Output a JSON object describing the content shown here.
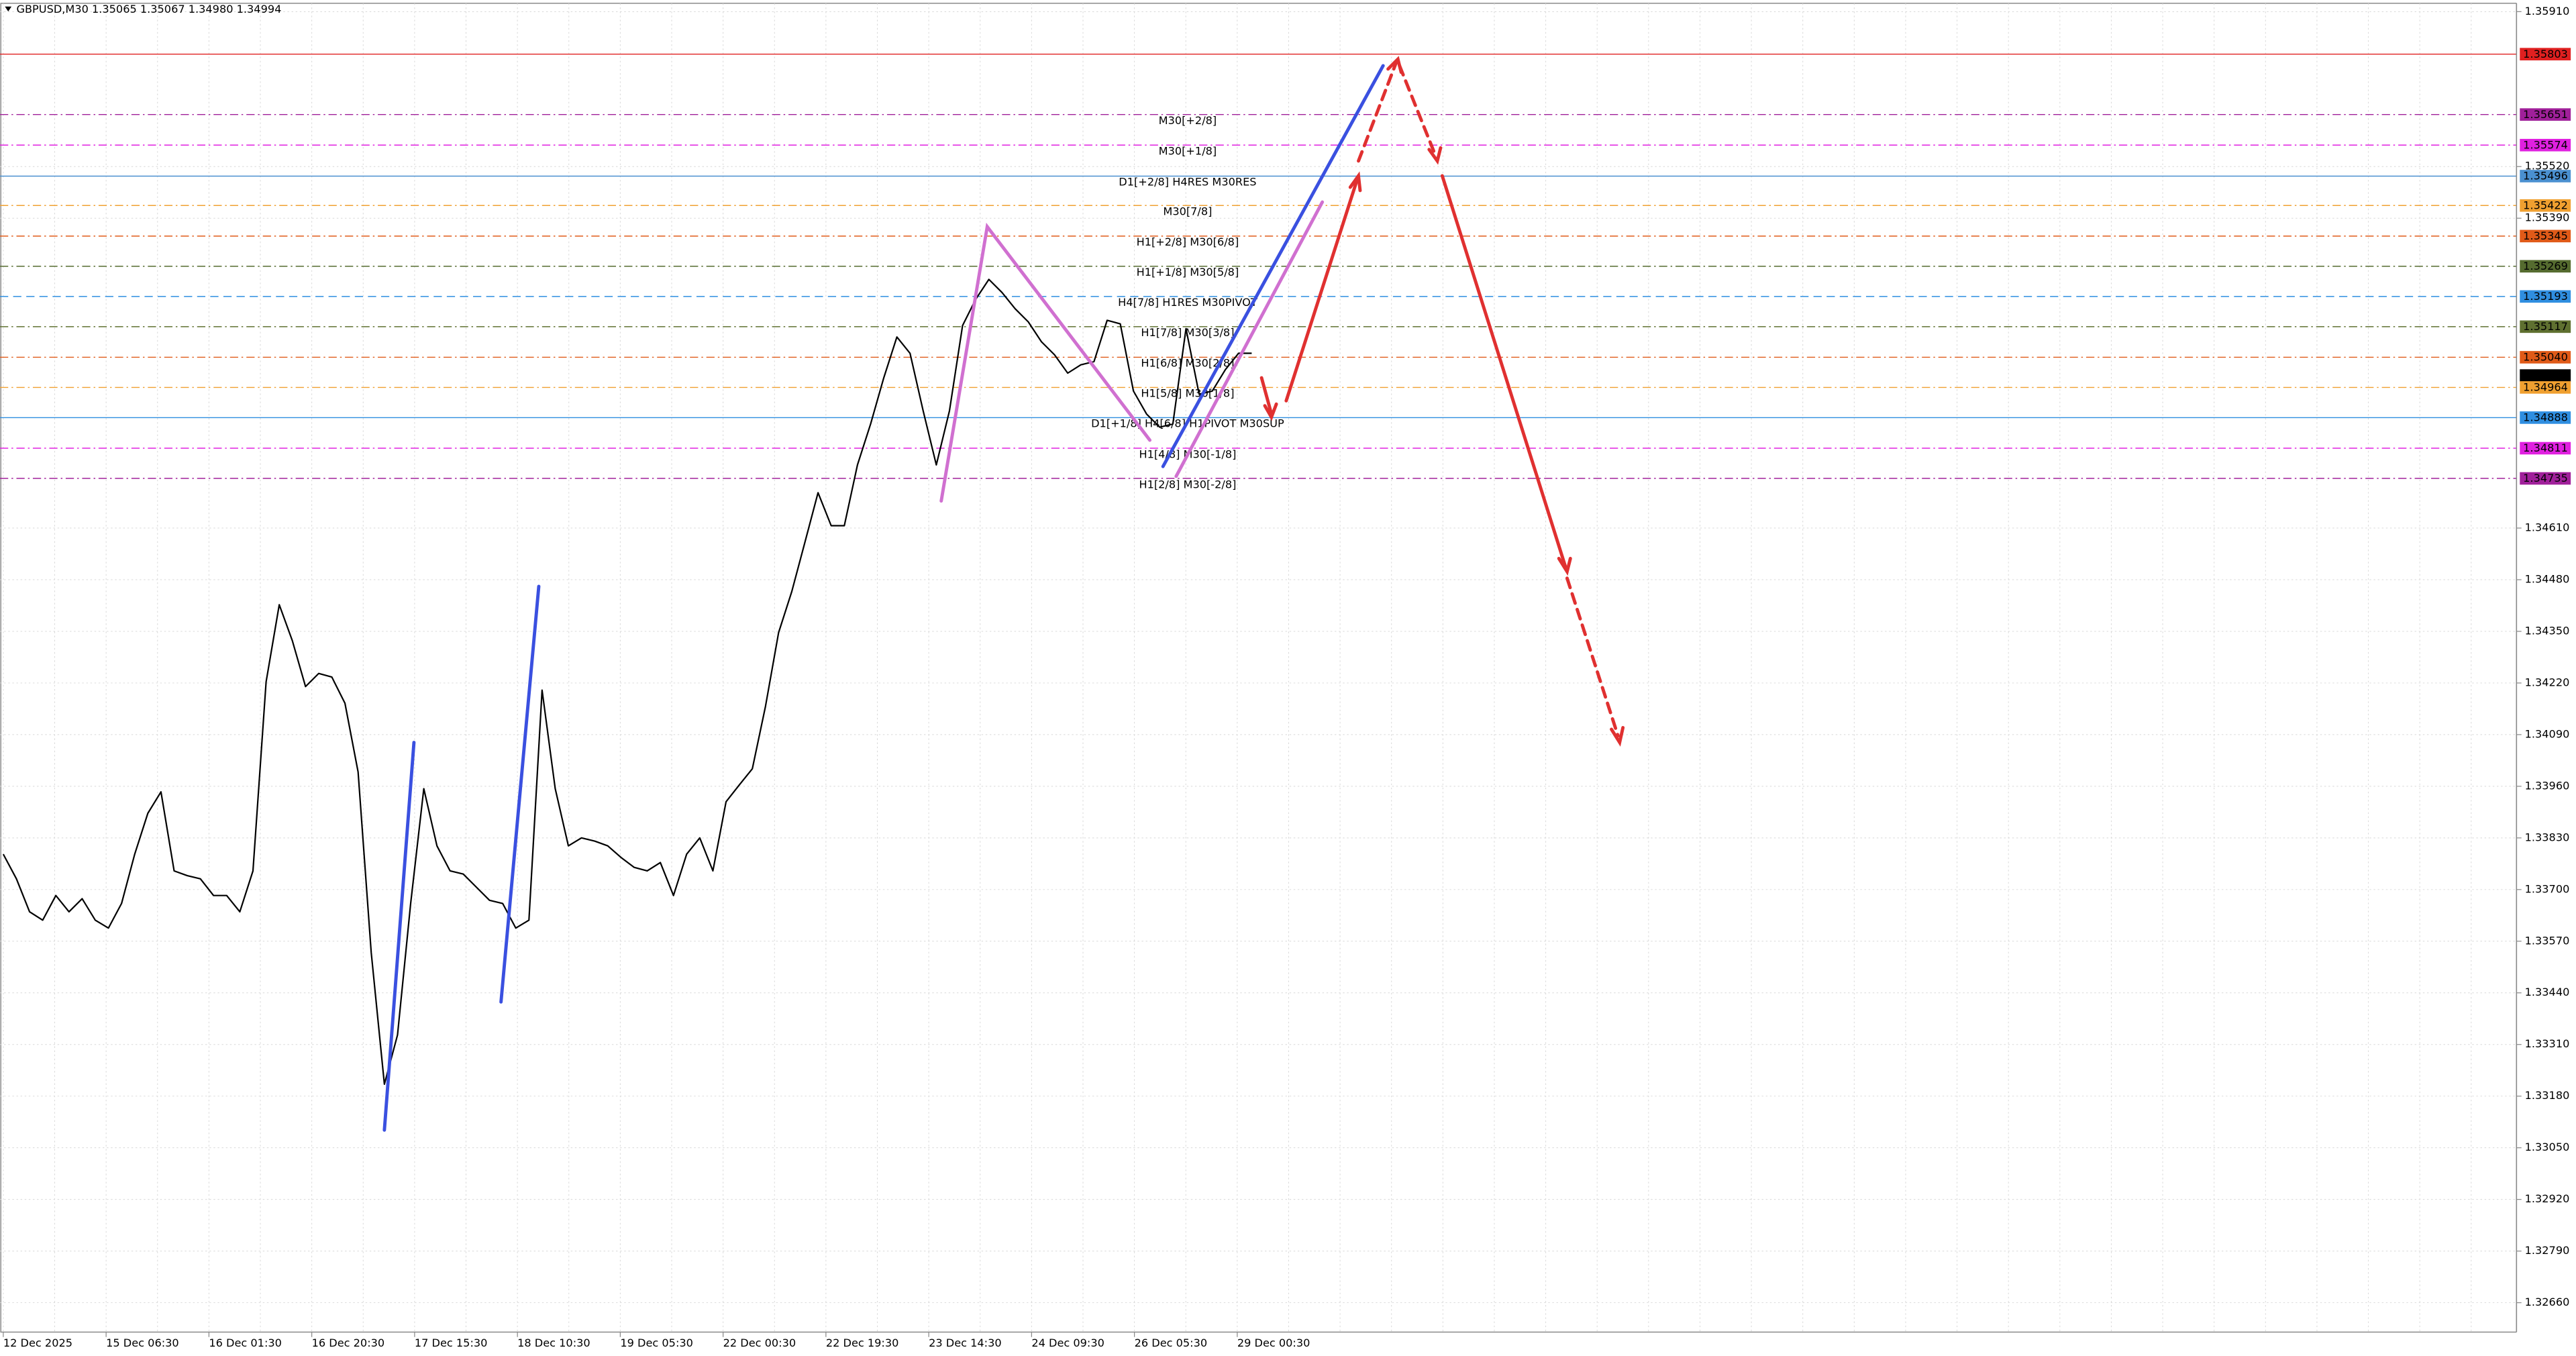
{
  "chart_data": {
    "type": "line",
    "title": "GBPUSD,M30  1.35065 1.35067 1.34980 1.34994",
    "x_tick_labels": [
      "12 Dec 2025",
      "15 Dec 06:30",
      "16 Dec 01:30",
      "16 Dec 20:30",
      "17 Dec 15:30",
      "18 Dec 10:30",
      "19 Dec 05:30",
      "22 Dec 00:30",
      "22 Dec 19:30",
      "23 Dec 14:30",
      "24 Dec 09:30",
      "26 Dec 05:30",
      "29 Dec 00:30"
    ],
    "series": [
      {
        "name": "GBPUSD",
        "color": "#000000",
        "values": [
          1.33789,
          1.33727,
          1.33644,
          1.33623,
          1.33685,
          1.33644,
          1.33677,
          1.33623,
          1.33603,
          1.33665,
          1.33789,
          1.33892,
          1.33946,
          1.33747,
          1.33735,
          1.33727,
          1.33685,
          1.33685,
          1.33644,
          1.33747,
          1.34223,
          1.34417,
          1.34326,
          1.34211,
          1.34244,
          1.34235,
          1.34169,
          1.33996,
          1.33541,
          1.3321,
          1.33334,
          1.33665,
          1.33954,
          1.3381,
          1.33747,
          1.33739,
          1.33706,
          1.33673,
          1.33665,
          1.33603,
          1.33623,
          1.34202,
          1.33954,
          1.3381,
          1.3383,
          1.33822,
          1.3381,
          1.33781,
          1.33756,
          1.33747,
          1.33768,
          1.33685,
          1.33789,
          1.3383,
          1.33747,
          1.33921,
          1.33963,
          1.34004,
          1.34161,
          1.34347,
          1.3445,
          1.34574,
          1.34699,
          1.34616,
          1.34616,
          1.34769,
          1.34872,
          1.34988,
          1.35091,
          1.3505,
          1.34905,
          1.34769,
          1.34905,
          1.3512,
          1.35186,
          1.35236,
          1.35203,
          1.35162,
          1.35129,
          1.35079,
          1.35046,
          1.35,
          1.35021,
          1.35029,
          1.35133,
          1.35124,
          1.34955,
          1.34897,
          1.34864,
          1.34872,
          1.35112,
          1.34947,
          1.34955,
          1.35009,
          1.3505,
          1.3505
        ]
      }
    ],
    "ylim": [
      1.32586,
      1.35931
    ],
    "yticks": [
      {
        "value": 1.3591,
        "label": "1.35910"
      },
      {
        "value": 1.3552,
        "label": "1.35520"
      },
      {
        "value": 1.3539,
        "label": "1.35390"
      },
      {
        "value": 1.3461,
        "label": "1.34610"
      },
      {
        "value": 1.3448,
        "label": "1.34480"
      },
      {
        "value": 1.3435,
        "label": "1.34350"
      },
      {
        "value": 1.3422,
        "label": "1.34220"
      },
      {
        "value": 1.3409,
        "label": "1.34090"
      },
      {
        "value": 1.3396,
        "label": "1.33960"
      },
      {
        "value": 1.3383,
        "label": "1.33830"
      },
      {
        "value": 1.337,
        "label": "1.33700"
      },
      {
        "value": 1.3357,
        "label": "1.33570"
      },
      {
        "value": 1.3344,
        "label": "1.33440"
      },
      {
        "value": 1.3331,
        "label": "1.33310"
      },
      {
        "value": 1.3318,
        "label": "1.33180"
      },
      {
        "value": 1.3305,
        "label": "1.33050"
      },
      {
        "value": 1.3292,
        "label": "1.32920"
      },
      {
        "value": 1.3279,
        "label": "1.32790"
      },
      {
        "value": 1.3266,
        "label": "1.32660"
      }
    ],
    "grid": true,
    "levels": [
      {
        "value": 1.35803,
        "label": "1.35803",
        "color": "#e02020",
        "style": "solid"
      },
      {
        "value": 1.35651,
        "label": "1.35651",
        "color": "#a0209a",
        "style": "dashdot",
        "name": "M30[+2/8]"
      },
      {
        "value": 1.35574,
        "label": "1.35574",
        "color": "#e020e0",
        "style": "dashdot",
        "name": "M30[+1/8]"
      },
      {
        "value": 1.35496,
        "label": "1.35496",
        "color": "#4a90d0",
        "style": "solid",
        "name": "D1[+2/8] H4RES M30RES"
      },
      {
        "value": 1.35422,
        "label": "1.35422",
        "color": "#f0a030",
        "style": "dashdot",
        "name": "M30[7/8]"
      },
      {
        "value": 1.35345,
        "label": "1.35345",
        "color": "#e05a18",
        "style": "dashdot",
        "name": "H1[+2/8] M30[6/8]"
      },
      {
        "value": 1.35269,
        "label": "1.35269",
        "color": "#556b2f",
        "style": "dashdot",
        "name": "H1[+1/8] M30[5/8]"
      },
      {
        "value": 1.35193,
        "label": "1.35193",
        "color": "#2f8ee0",
        "style": "dash",
        "name": "H4[7/8] H1RES M30PIVOT"
      },
      {
        "value": 1.35117,
        "label": "1.35117",
        "color": "#5f7030",
        "style": "dashdot",
        "name": "H1[7/8] M30[3/8]"
      },
      {
        "value": 1.3504,
        "label": "1.35040",
        "color": "#e05a18",
        "style": "dashdot",
        "name": "H1[6/8] M30[2/8]"
      },
      {
        "value": 1.34994,
        "label": "1.34994",
        "color": "#000000",
        "style": "none"
      },
      {
        "value": 1.34964,
        "label": "1.34964",
        "color": "#f0a030",
        "style": "dashdot",
        "name": "H1[5/8] M30[1/8]"
      },
      {
        "value": 1.34888,
        "label": "1.34888",
        "color": "#2f8ee0",
        "style": "solid",
        "name": "D1[+1/8] H4[6/8] H1PIVOT M30SUP"
      },
      {
        "value": 1.34811,
        "label": "1.34811",
        "color": "#e020e0",
        "style": "dashdot",
        "name": "H1[4/8] M30[-1/8]"
      },
      {
        "value": 1.34735,
        "label": "1.34735",
        "color": "#a0209a",
        "style": "dashdot",
        "name": "H1[2/8] M30[-2/8]"
      }
    ]
  }
}
